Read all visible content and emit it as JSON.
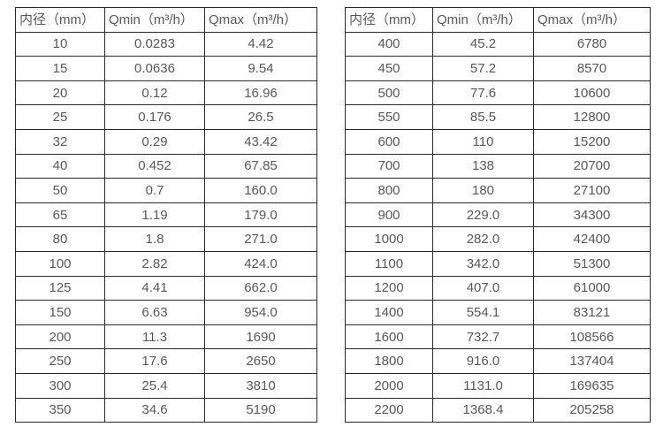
{
  "page": {
    "background_color": "#ffffff",
    "text_color": "#58585a",
    "border_color": "#2b2b2b"
  },
  "tables": [
    {
      "name": "flow-range-table-small-diameters",
      "headers": [
        "内径（mm）",
        "Qmin（m³/h）",
        "Qmax（m³/h）"
      ],
      "rows": [
        [
          "10",
          "0.0283",
          "4.42"
        ],
        [
          "15",
          "0.0636",
          "9.54"
        ],
        [
          "20",
          "0.12",
          "16.96"
        ],
        [
          "25",
          "0.176",
          "26.5"
        ],
        [
          "32",
          "0.29",
          "43.42"
        ],
        [
          "40",
          "0.452",
          "67.85"
        ],
        [
          "50",
          "0.7",
          "160.0"
        ],
        [
          "65",
          "1.19",
          "179.0"
        ],
        [
          "80",
          "1.8",
          "271.0"
        ],
        [
          "100",
          "2.82",
          "424.0"
        ],
        [
          "125",
          "4.41",
          "662.0"
        ],
        [
          "150",
          "6.63",
          "954.0"
        ],
        [
          "200",
          "11.3",
          "1690"
        ],
        [
          "250",
          "17.6",
          "2650"
        ],
        [
          "300",
          "25.4",
          "3810"
        ],
        [
          "350",
          "34.6",
          "5190"
        ]
      ]
    },
    {
      "name": "flow-range-table-large-diameters",
      "headers": [
        "内径（mm）",
        "Qmin（m³/h）",
        "Qmax（m³/h）"
      ],
      "rows": [
        [
          "400",
          "45.2",
          "6780"
        ],
        [
          "450",
          "57.2",
          "8570"
        ],
        [
          "500",
          "77.6",
          "10600"
        ],
        [
          "550",
          "85.5",
          "12800"
        ],
        [
          "600",
          "110",
          "15200"
        ],
        [
          "700",
          "138",
          "20700"
        ],
        [
          "800",
          "180",
          "27100"
        ],
        [
          "900",
          "229.0",
          "34300"
        ],
        [
          "1000",
          "282.0",
          "42400"
        ],
        [
          "1100",
          "342.0",
          "51300"
        ],
        [
          "1200",
          "407.0",
          "61000"
        ],
        [
          "1400",
          "554.1",
          "83121"
        ],
        [
          "1600",
          "732.7",
          "108566"
        ],
        [
          "1800",
          "916.0",
          "137404"
        ],
        [
          "2000",
          "1131.0",
          "169635"
        ],
        [
          "2200",
          "1368.4",
          "205258"
        ]
      ]
    }
  ]
}
